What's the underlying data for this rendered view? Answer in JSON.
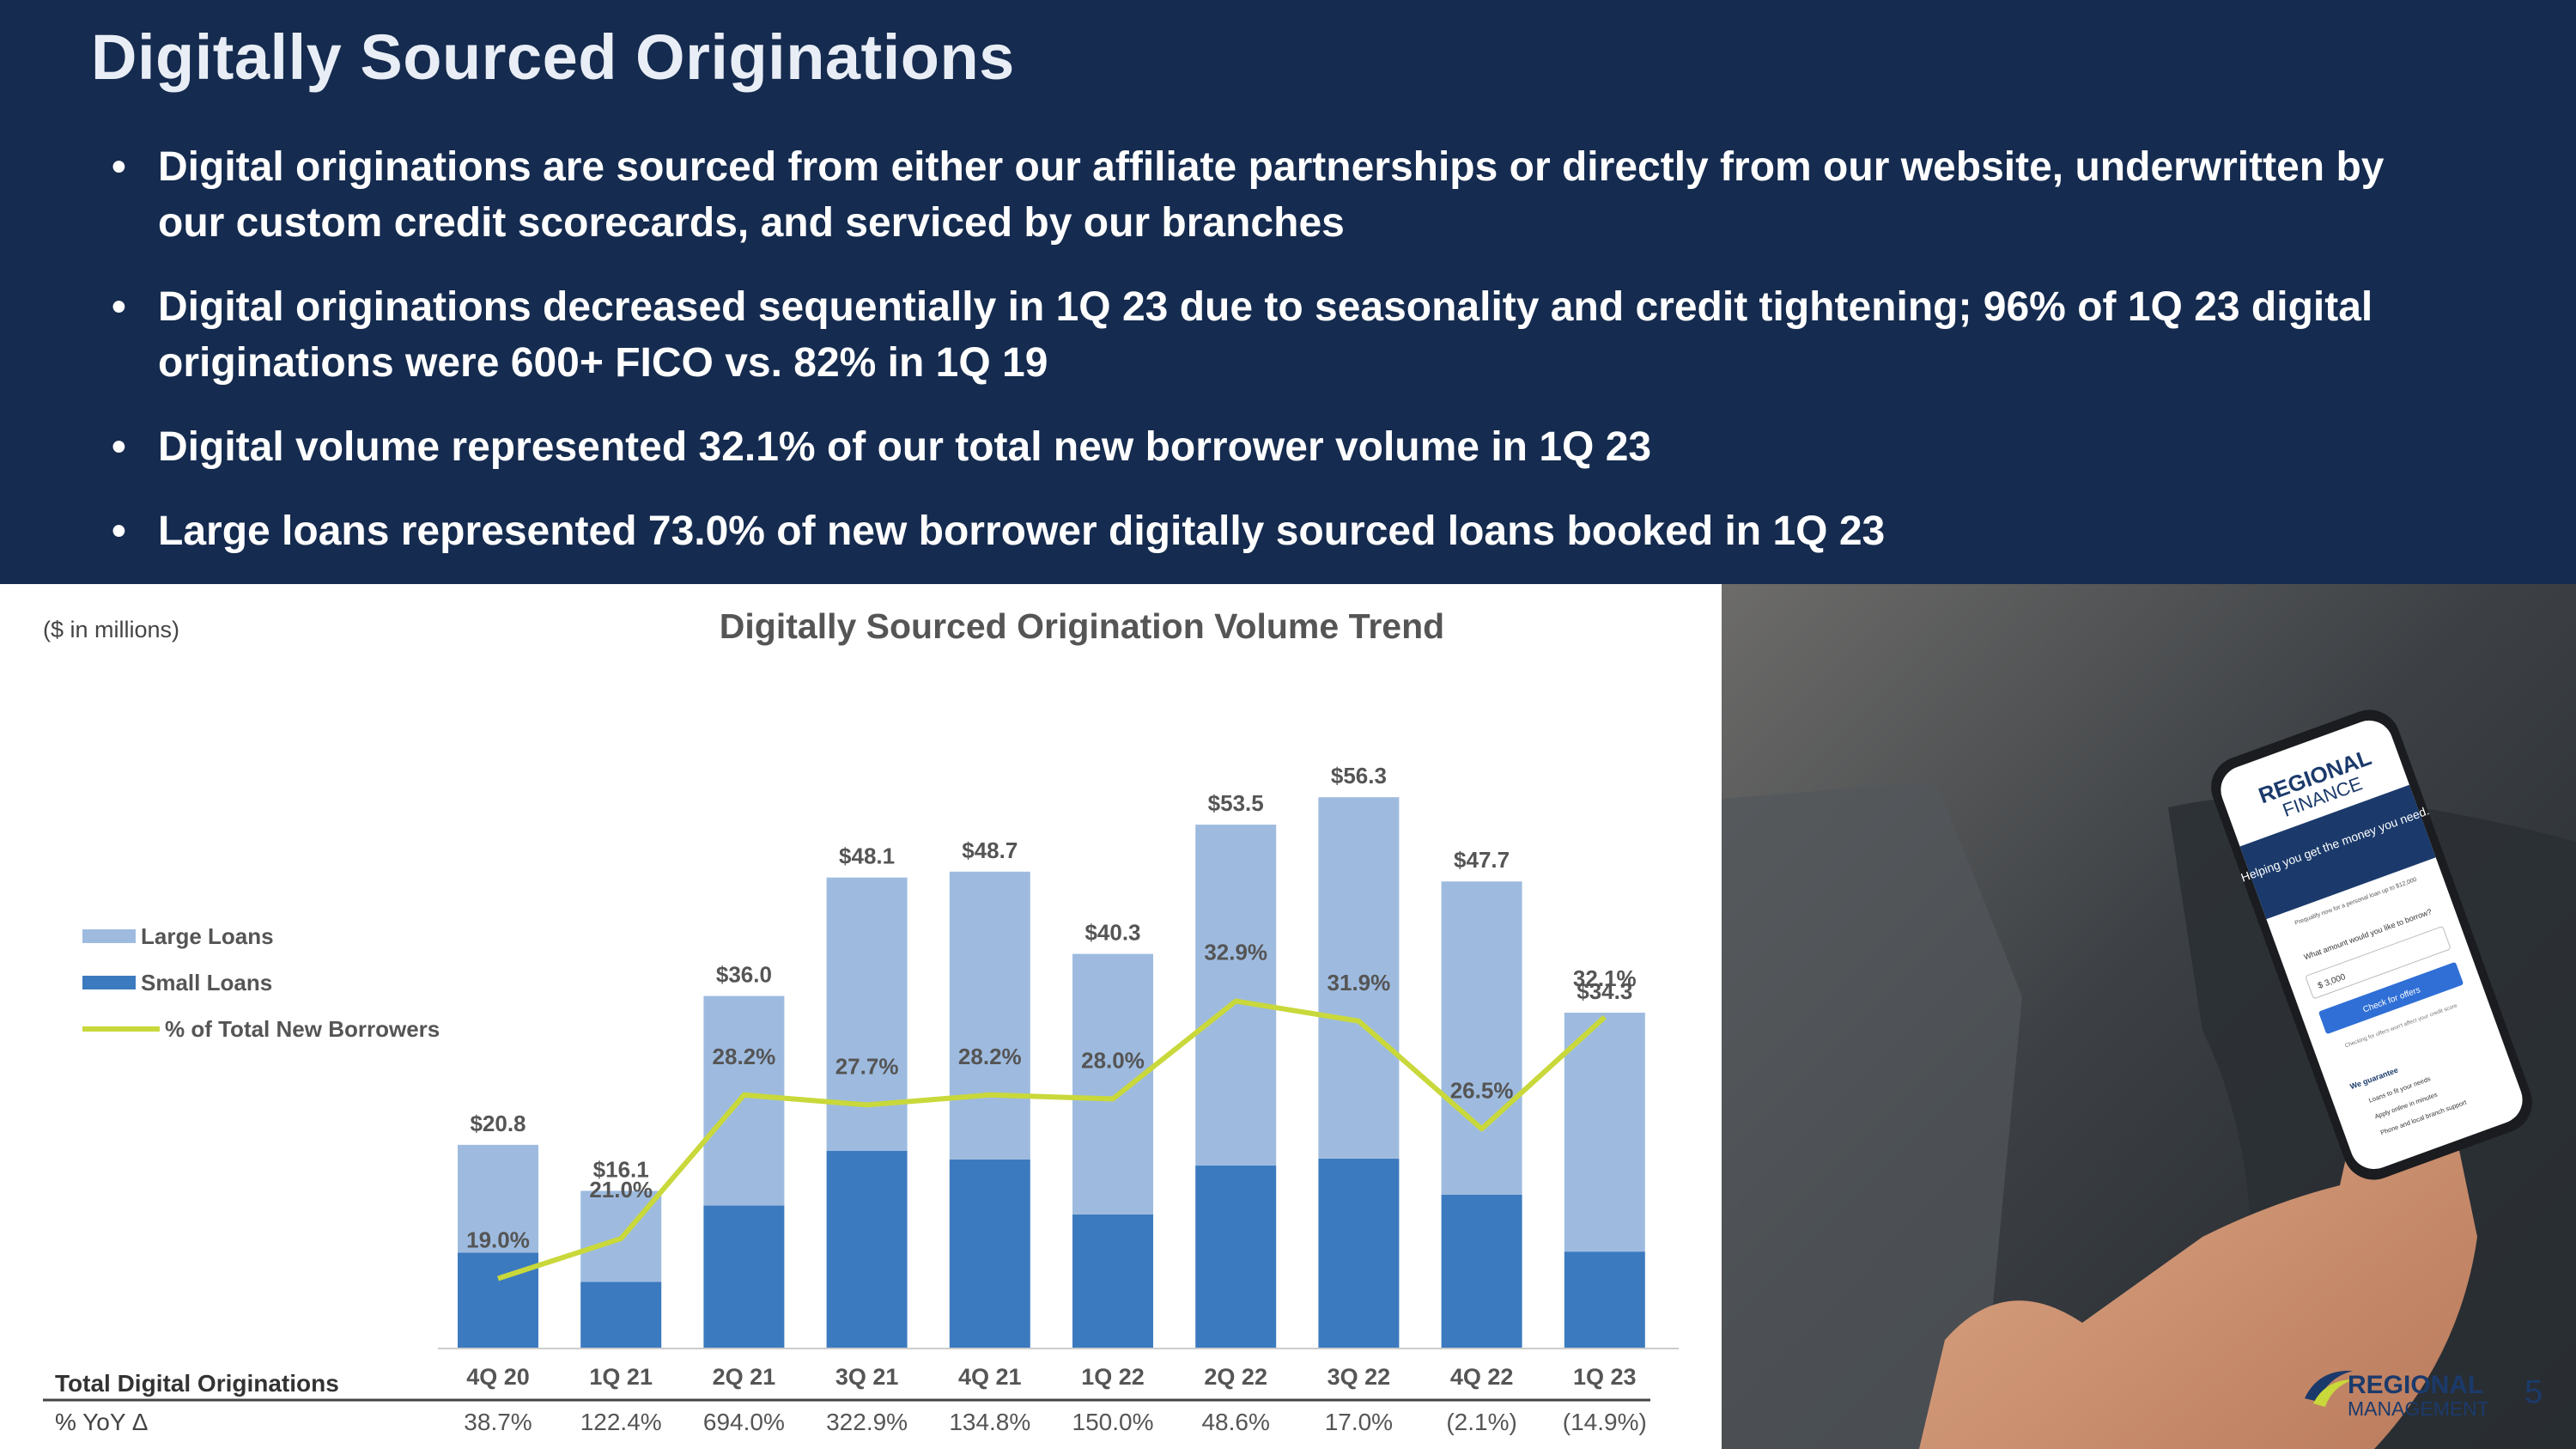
{
  "slide": {
    "title": "Digitally Sourced Originations",
    "bullets": [
      "Digital originations are sourced from either our affiliate partnerships or directly from our website, underwritten by our custom credit scorecards, and serviced by our branches",
      "Digital originations decreased sequentially in 1Q 23 due to seasonality and credit tightening; 96% of 1Q 23 digital originations were 600+ FICO vs. 82% in 1Q 19",
      "Digital volume represented 32.1% of our total new borrower volume in 1Q 23",
      "Large loans represented 73.0% of new borrower digitally sourced loans booked in 1Q 23"
    ],
    "page_number": "5"
  },
  "chart_data": {
    "type": "bar",
    "stacked": true,
    "title": "Digitally Sourced Origination Volume Trend",
    "units_note": "($ in millions)",
    "categories": [
      "4Q 20",
      "1Q 21",
      "2Q 21",
      "3Q 21",
      "4Q 21",
      "1Q 22",
      "2Q 22",
      "3Q 22",
      "4Q 22",
      "1Q 23"
    ],
    "totals": [
      20.8,
      16.1,
      36.0,
      48.1,
      48.7,
      40.3,
      53.5,
      56.3,
      47.7,
      34.3
    ],
    "total_labels": [
      "$20.8",
      "$16.1",
      "$36.0",
      "$48.1",
      "$48.7",
      "$40.3",
      "$53.5",
      "$56.3",
      "$47.7",
      "$34.3"
    ],
    "series": [
      {
        "name": "Small Loans",
        "values": [
          9.8,
          6.8,
          14.6,
          20.2,
          19.3,
          13.7,
          18.7,
          19.4,
          15.7,
          9.9
        ],
        "color": "#3c7abf"
      },
      {
        "name": "Large Loans",
        "values": [
          11.0,
          9.3,
          21.4,
          27.9,
          29.4,
          26.6,
          34.8,
          36.9,
          32.0,
          24.4
        ],
        "color": "#9ebbdf"
      }
    ],
    "line_series": {
      "name": "% of Total New Borrowers",
      "values": [
        19.0,
        21.0,
        28.2,
        27.7,
        28.2,
        28.0,
        32.9,
        31.9,
        26.5,
        32.1
      ],
      "labels": [
        "19.0%",
        "21.0%",
        "28.2%",
        "27.7%",
        "28.2%",
        "28.0%",
        "32.9%",
        "31.9%",
        "26.5%",
        "32.1%"
      ],
      "color": "#c9d83a"
    },
    "legend": [
      "Large Loans",
      "Small Loans",
      "% of Total New Borrowers"
    ],
    "legend_position": "left",
    "table": {
      "row1_label": "Total Digital Originations",
      "row2_label": "% YoY Δ",
      "yoy": [
        "38.7%",
        "122.4%",
        "694.0%",
        "322.9%",
        "134.8%",
        "150.0%",
        "48.6%",
        "17.0%",
        "(2.1%)",
        "(14.9%)"
      ]
    }
  },
  "photo": {
    "phone_brand_top": "REGIONAL",
    "phone_brand_bottom": "FINANCE",
    "phone_headline": "Helping you get the money you need.",
    "phone_subline": "Prequalify now for a personal loan up to $12,000",
    "phone_question": "What amount would you like to borrow?",
    "phone_amount": "$ 3,000",
    "phone_button": "Check for offers",
    "phone_note": "Checking for offers won't affect your credit score",
    "phone_guarantee": "We guarantee",
    "phone_items": [
      "Loans to fit your needs",
      "Apply online in minutes",
      "Phone and local branch support"
    ]
  },
  "logo": {
    "top": "REGIONAL",
    "bottom": "MANAGEMENT"
  }
}
